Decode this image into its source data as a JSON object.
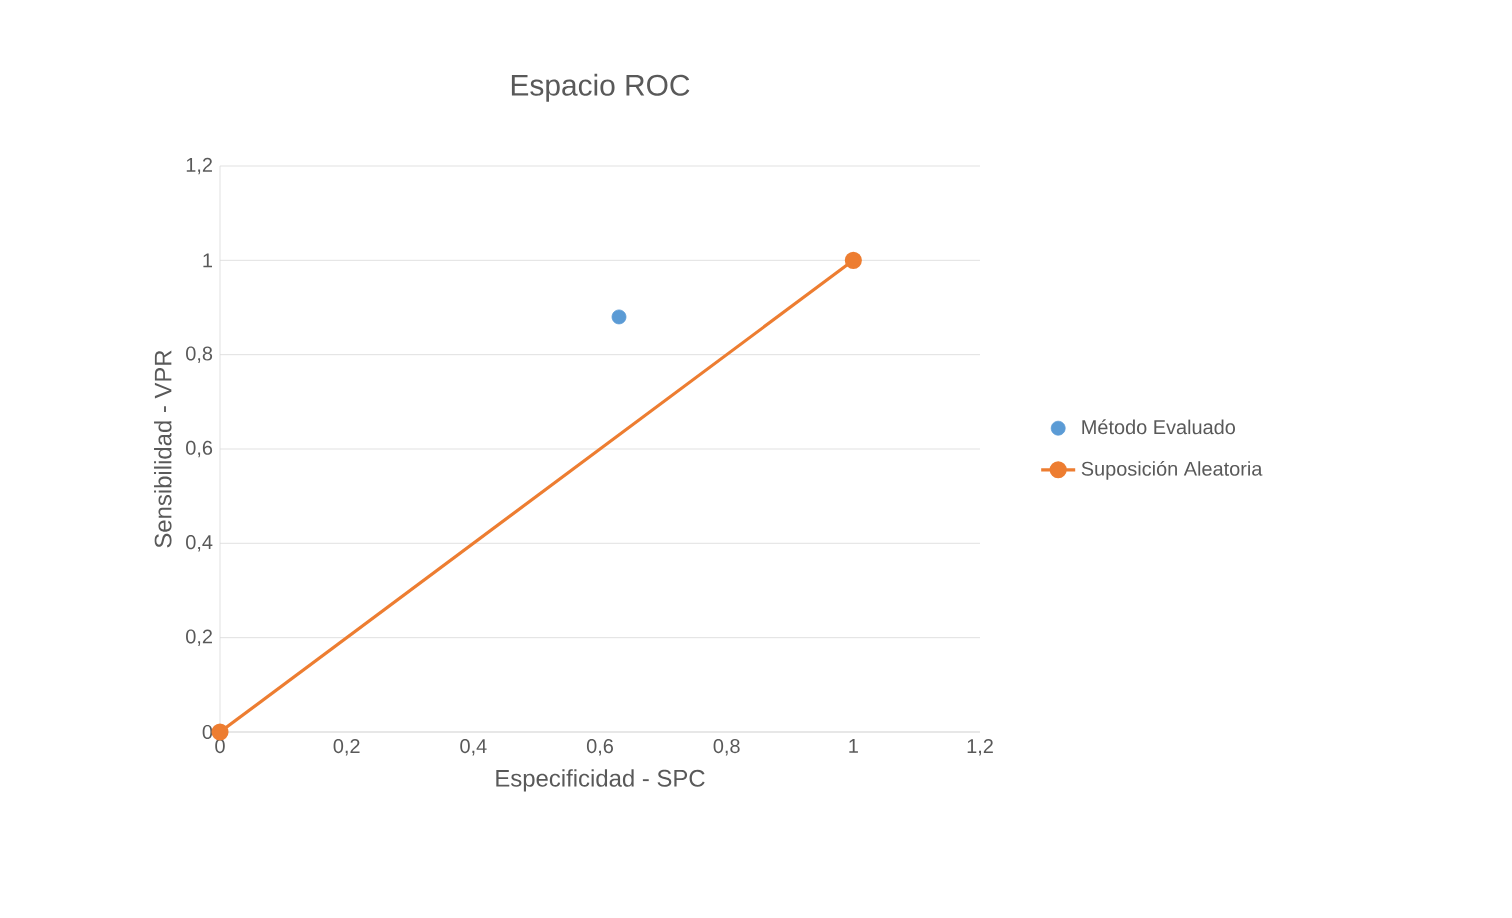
{
  "chart_data": {
    "type": "scatter",
    "title": "Espacio ROC",
    "xlabel": "Especificidad - SPC",
    "ylabel": "Sensibilidad - VPR",
    "xlim": [
      0,
      1.2
    ],
    "ylim": [
      0,
      1.2
    ],
    "xticks": [
      0,
      {
        "value": 0.2,
        "label": "0,2"
      },
      {
        "value": 0.4,
        "label": "0,4"
      },
      {
        "value": 0.6,
        "label": "0,6"
      },
      {
        "value": 0.8,
        "label": "0,8"
      },
      1,
      {
        "value": 1.2,
        "label": "1,2"
      }
    ],
    "yticks": [
      0,
      {
        "value": 0.2,
        "label": "0,2"
      },
      {
        "value": 0.4,
        "label": "0,4"
      },
      {
        "value": 0.6,
        "label": "0,6"
      },
      {
        "value": 0.8,
        "label": "0,8"
      },
      1,
      {
        "value": 1.2,
        "label": "1,2"
      }
    ],
    "grid": "y",
    "legend": "right",
    "marker": "circle",
    "series": [
      {
        "name": "Método Evaluado",
        "color": "#5b9bd5",
        "x": [
          0.63
        ],
        "values": [
          0.88
        ]
      },
      {
        "name": "Suposición Aleatoria",
        "type": "line",
        "color": "#ed7d31",
        "x": [
          0,
          1
        ],
        "values": [
          0,
          1
        ]
      }
    ]
  }
}
